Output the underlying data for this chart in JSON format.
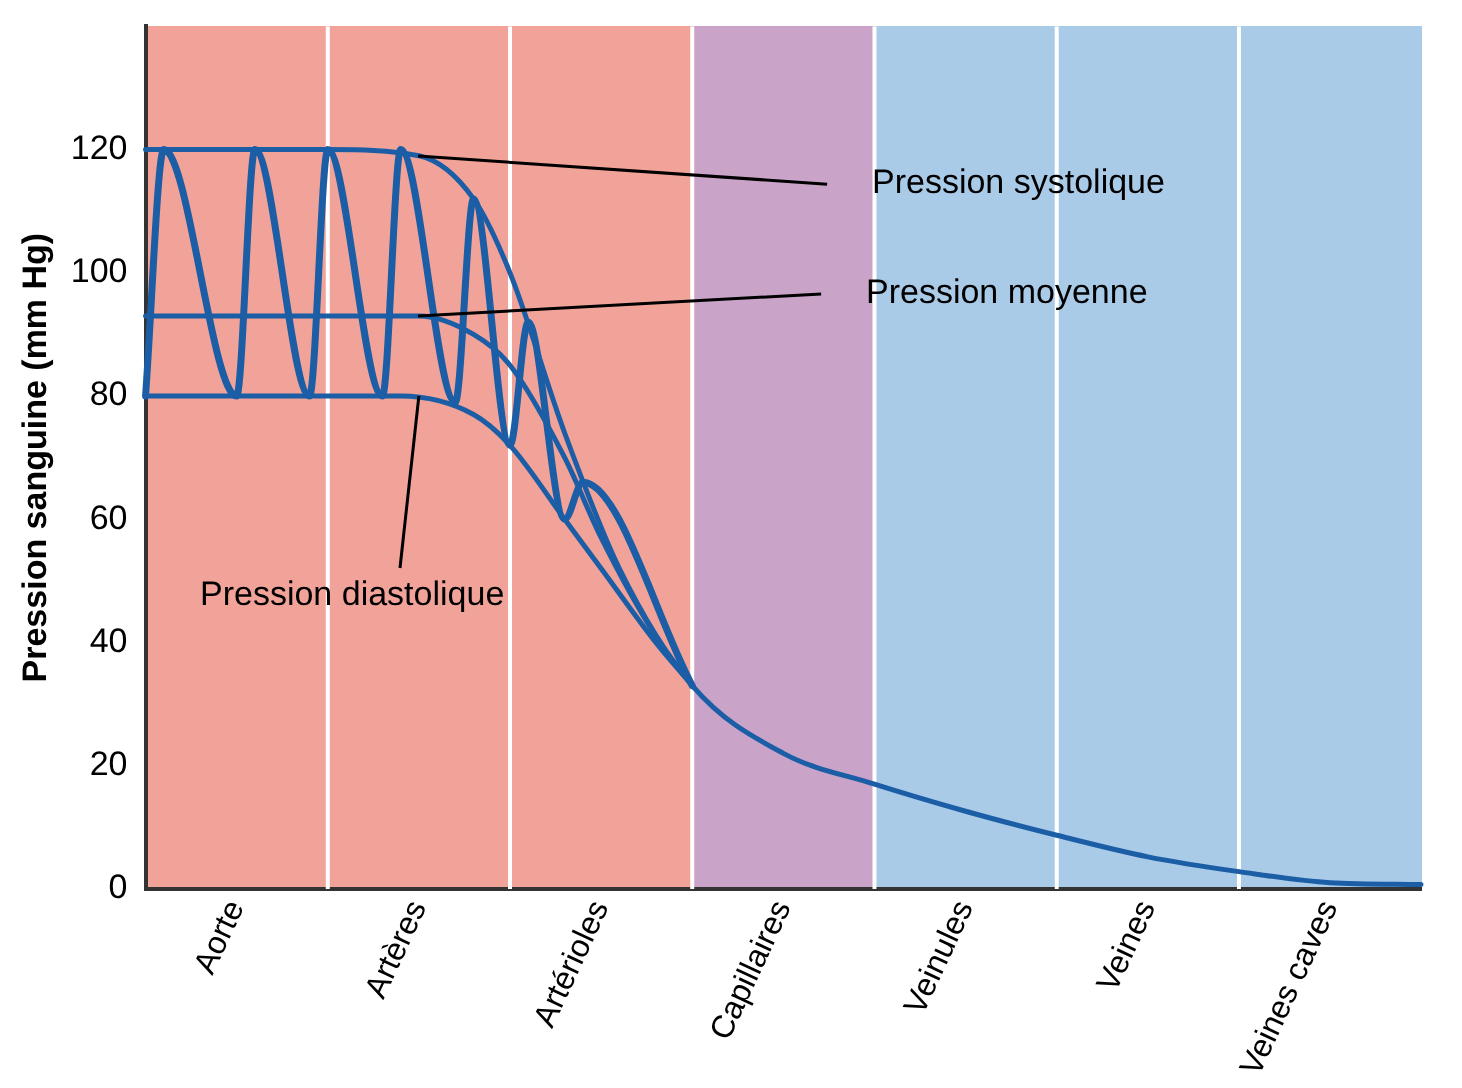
{
  "chart_data": {
    "type": "line",
    "ylabel": "Pression sanguine (mm Hg)",
    "categories": [
      null,
      null,
      null,
      null,
      null,
      "Aorte",
      null,
      null,
      null,
      null,
      null,
      null,
      null,
      null,
      null,
      "Artères",
      null,
      null,
      null,
      null,
      null,
      null,
      null,
      null,
      null,
      "Artérioles",
      null,
      null,
      null,
      null,
      null,
      null,
      null,
      null,
      null,
      "Capillaires",
      null,
      null,
      null,
      null,
      null,
      null,
      null,
      null,
      null,
      "Veinules",
      null,
      null,
      null,
      null,
      null,
      null,
      null,
      null,
      null,
      "Veines",
      null,
      null,
      null,
      null,
      null,
      null,
      null,
      null,
      null,
      "Veines caves",
      null,
      null,
      null,
      null,
      null
    ],
    "ylim": [
      0,
      140
    ],
    "yticks": [
      0,
      20,
      40,
      60,
      80,
      100,
      120
    ],
    "grid": "x",
    "legend": false,
    "marker": "none",
    "line_style": "solid",
    "series": [
      {
        "color": "#1b5ea6",
        "values": [
          120,
          null,
          null,
          null,
          null,
          null,
          null,
          null,
          null,
          null,
          120,
          null,
          null,
          null,
          null,
          119,
          null,
          null,
          112,
          null,
          100,
          null,
          null,
          74,
          null,
          null,
          52,
          null,
          null,
          null,
          33,
          null,
          null,
          null,
          null,
          22,
          null,
          null,
          null,
          null,
          17,
          null,
          null,
          null,
          null,
          12.6,
          null,
          null,
          null,
          null,
          8.7,
          null,
          null,
          null,
          null,
          5.2,
          null,
          null,
          null,
          null,
          2.8,
          null,
          null,
          null,
          null,
          1,
          null,
          null,
          null,
          null,
          0.7
        ]
      },
      {
        "color": "#1b5ea6",
        "values": [
          93,
          null,
          null,
          null,
          null,
          null,
          null,
          null,
          null,
          null,
          93,
          null,
          null,
          null,
          null,
          93,
          null,
          null,
          90,
          null,
          85,
          null,
          null,
          70,
          null,
          57,
          null,
          null,
          41,
          null,
          33,
          null,
          null,
          null,
          null,
          null,
          null,
          null,
          null,
          null,
          null,
          null,
          null,
          null,
          null,
          null,
          null,
          null,
          null,
          null,
          null,
          null,
          null,
          null,
          null,
          null,
          null,
          null,
          null,
          null,
          null,
          null,
          null,
          null,
          null,
          null,
          null,
          null,
          null,
          null,
          null
        ]
      },
      {
        "color": "#1b5ea6",
        "values": [
          80,
          null,
          null,
          null,
          null,
          null,
          null,
          null,
          null,
          null,
          80,
          null,
          null,
          null,
          80,
          null,
          null,
          null,
          77,
          null,
          72,
          null,
          null,
          60,
          null,
          52,
          null,
          null,
          40,
          null,
          33,
          null,
          null,
          null,
          null,
          null,
          null,
          null,
          null,
          null,
          null,
          null,
          null,
          null,
          null,
          null,
          null,
          null,
          null,
          null,
          null,
          null,
          null,
          null,
          null,
          null,
          null,
          null,
          null,
          null,
          null,
          null,
          null,
          null,
          null,
          null,
          null,
          null,
          null,
          null,
          null
        ]
      },
      {
        "color": "#1b5ea6",
        "values": [
          80,
          120,
          null,
          null,
          null,
          80,
          120,
          null,
          null,
          80,
          120,
          null,
          null,
          80,
          120,
          null,
          null,
          79,
          112,
          null,
          72,
          92,
          null,
          60,
          66,
          null,
          null,
          null,
          null,
          null,
          33,
          null,
          null,
          null,
          null,
          null,
          null,
          null,
          null,
          null,
          null,
          null,
          null,
          null,
          null,
          null,
          null,
          null,
          null,
          null,
          null,
          null,
          null,
          null,
          null,
          null,
          null,
          null,
          null,
          null,
          null,
          null,
          null,
          null,
          null,
          null,
          null,
          null,
          null,
          null,
          null
        ]
      }
    ],
    "annotations": [
      {
        "text": "Pression systolique",
        "x": "Artères",
        "y": 119
      },
      {
        "text": "Pression moyenne",
        "x": "Artères",
        "y": 93
      },
      {
        "text": "Pression diastolique",
        "x": "Artères",
        "y": 80
      }
    ]
  }
}
